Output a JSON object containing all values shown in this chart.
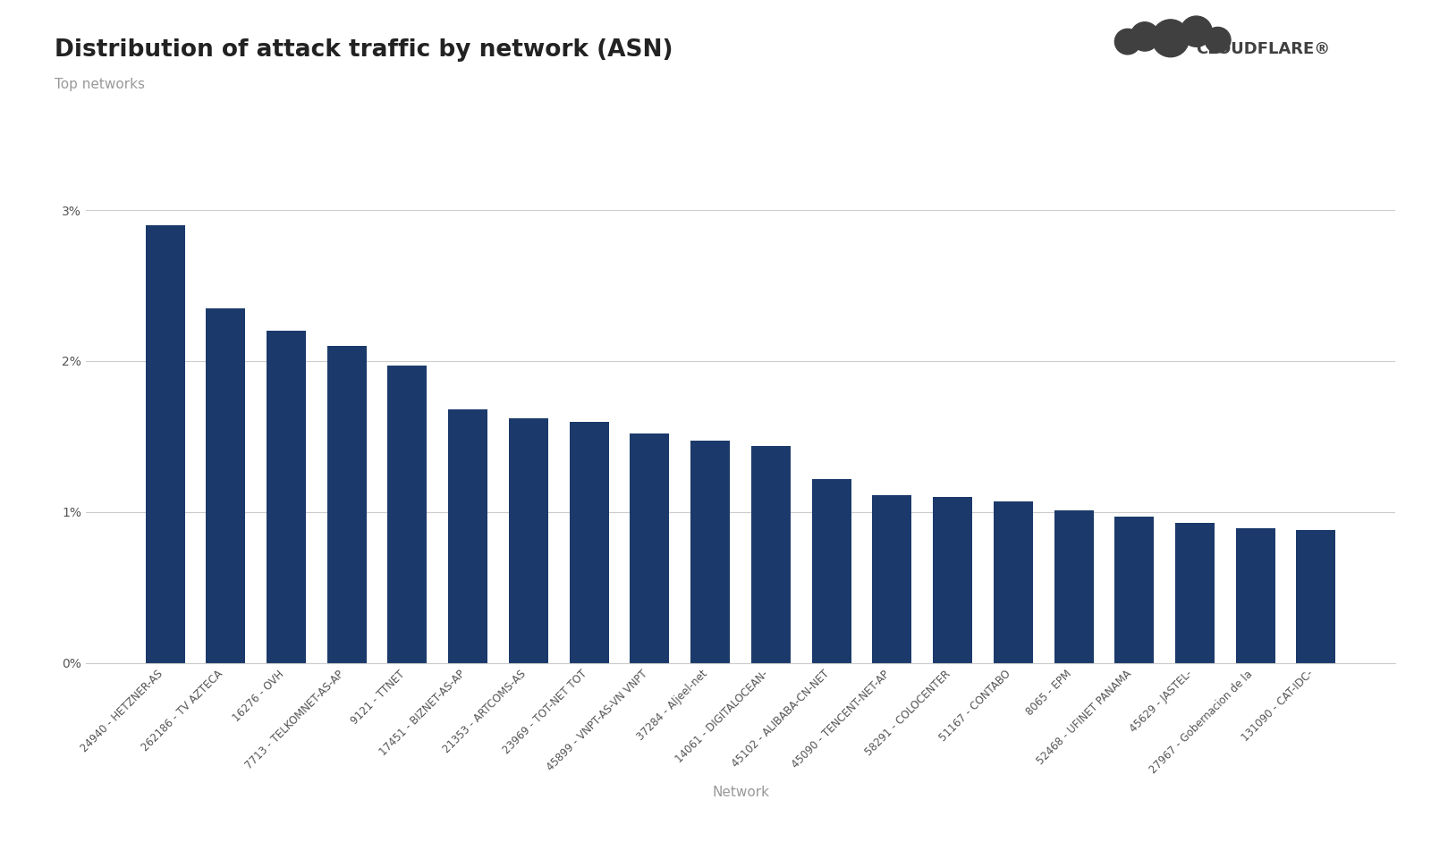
{
  "title": "Distribution of attack traffic by network (ASN)",
  "subtitle": "Top networks",
  "xlabel": "Network",
  "bar_color": "#1b3a6b",
  "background_color": "#ffffff",
  "categories": [
    "24940 - HETZNER-AS",
    "262186 - TV AZTECA",
    "16276 - OVH",
    "7713 - TELKOMNET-AS-AP",
    "9121 - TTNET",
    "17451 - BIZNET-AS-AP",
    "21353 - ARTCOMS-AS",
    "23969 - TOT-NET TOT",
    "45899 - VNPT-AS-VN VNPT",
    "37284 - Aljeel-net",
    "14061 - DIGITALOCEAN-",
    "45102 - ALIBABA-CN-NET",
    "45090 - TENCENT-NET-AP",
    "58291 - COLOCENTER",
    "51167 - CONTABO",
    "8065 - EPM",
    "52468 - UFINET PANAMA",
    "45629 - JASTEL-",
    "27967 - Gobernacion de la",
    "131090 - CAT-IDC-"
  ],
  "values": [
    0.029,
    0.0235,
    0.022,
    0.021,
    0.0197,
    0.0168,
    0.0162,
    0.016,
    0.0152,
    0.0147,
    0.0144,
    0.0122,
    0.0111,
    0.011,
    0.0107,
    0.0101,
    0.0097,
    0.0093,
    0.0089,
    0.0088
  ],
  "yticks": [
    0.0,
    0.01,
    0.02,
    0.03
  ],
  "ytick_labels": [
    "0%",
    "1%",
    "2%",
    "3%"
  ],
  "ylim_max": 0.0335,
  "title_fontsize": 19,
  "subtitle_fontsize": 11,
  "xlabel_fontsize": 11,
  "xtick_fontsize": 8.5,
  "ytick_fontsize": 10,
  "grid_color": "#cccccc",
  "text_color": "#222222",
  "subtitle_color": "#999999",
  "axis_text_color": "#555555"
}
